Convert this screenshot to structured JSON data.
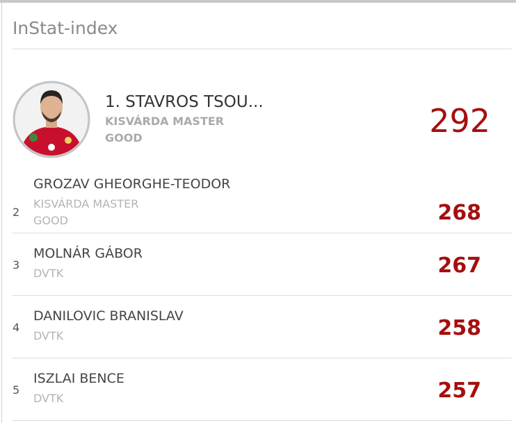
{
  "header": {
    "title": "InStat-index"
  },
  "leader": {
    "name": "1. STAVROS TSOU...",
    "team": "KISVÁRDA MASTER",
    "rating": "GOOD",
    "score": 292
  },
  "rows": [
    {
      "rank": 2,
      "name": "GROZAV GHEORGHE-TEODOR",
      "team": "KISVÁRDA MASTER",
      "rating": "GOOD",
      "score": 268
    },
    {
      "rank": 3,
      "name": "MOLNÁR GÁBOR",
      "team": "DVTK",
      "score": 267
    },
    {
      "rank": 4,
      "name": "DANILOVIC BRANISLAV",
      "team": "DVTK",
      "score": 258
    },
    {
      "rank": 5,
      "name": "ISZLAI BENCE",
      "team": "DVTK",
      "score": 257
    }
  ]
}
